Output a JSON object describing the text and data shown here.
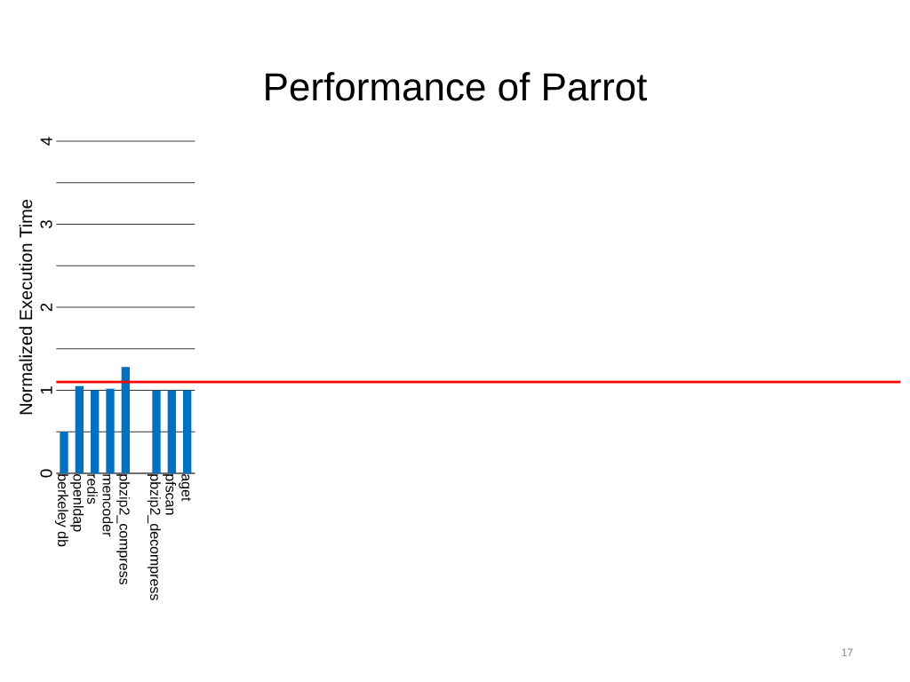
{
  "chart_data": {
    "type": "bar",
    "title": "Performance of Parrot",
    "ylabel": "Normalized Execution Time",
    "categories": [
      "berkeley db",
      "openldap",
      "redis",
      "mencoder",
      "pbzip2_compress",
      null,
      "pbzip2_decompress",
      "pfscan",
      "aget"
    ],
    "values": [
      0.5,
      1.05,
      1.0,
      1.02,
      1.28,
      null,
      1.0,
      1.0,
      1.0
    ],
    "color": "#0070c0",
    "ylim": [
      0,
      4
    ],
    "yticks": [
      0,
      {
        "value": 0.5,
        "label": null
      },
      1,
      {
        "value": 1.5,
        "label": null
      },
      2,
      {
        "value": 2.5,
        "label": null
      },
      3,
      {
        "value": 3.5,
        "label": null
      },
      4
    ],
    "grid": "y",
    "ref_lines": [
      {
        "axis": "y",
        "value": 1.1,
        "color": "#ff0000"
      }
    ],
    "annotations": [
      "17"
    ]
  }
}
